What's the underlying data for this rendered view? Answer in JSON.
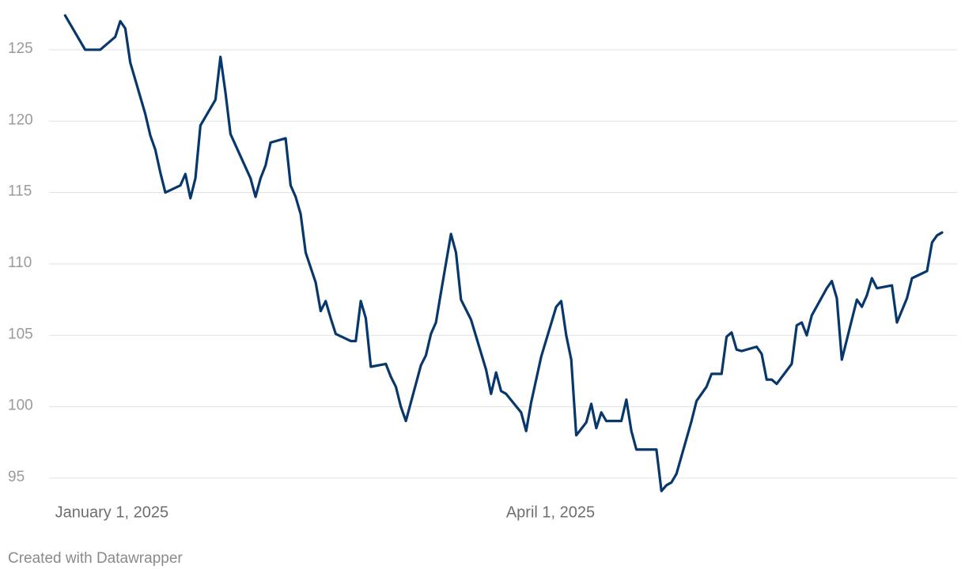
{
  "chart_data": {
    "type": "line",
    "x": [
      "2025-01-03",
      "2025-01-07",
      "2025-01-10",
      "2025-01-13",
      "2025-01-14",
      "2025-01-15",
      "2025-01-16",
      "2025-01-19",
      "2025-01-20",
      "2025-01-21",
      "2025-01-22",
      "2025-01-23",
      "2025-01-26",
      "2025-01-27",
      "2025-01-28",
      "2025-01-29",
      "2025-01-30",
      "2025-02-02",
      "2025-02-03",
      "2025-02-04",
      "2025-02-05",
      "2025-02-09",
      "2025-02-10",
      "2025-02-11",
      "2025-02-12",
      "2025-02-13",
      "2025-02-16",
      "2025-02-17",
      "2025-02-18",
      "2025-02-19",
      "2025-02-20",
      "2025-02-22",
      "2025-02-23",
      "2025-02-24",
      "2025-02-25",
      "2025-02-26",
      "2025-03-01",
      "2025-03-02",
      "2025-03-03",
      "2025-03-04",
      "2025-03-05",
      "2025-03-08",
      "2025-03-09",
      "2025-03-10",
      "2025-03-11",
      "2025-03-12",
      "2025-03-15",
      "2025-03-16",
      "2025-03-17",
      "2025-03-18",
      "2025-03-19",
      "2025-03-21",
      "2025-03-22",
      "2025-03-23",
      "2025-03-25",
      "2025-03-28",
      "2025-03-29",
      "2025-03-30",
      "2025-03-31",
      "2025-04-01",
      "2025-04-04",
      "2025-04-05",
      "2025-04-06",
      "2025-04-08",
      "2025-04-11",
      "2025-04-12",
      "2025-04-13",
      "2025-04-14",
      "2025-04-15",
      "2025-04-17",
      "2025-04-18",
      "2025-04-19",
      "2025-04-20",
      "2025-04-21",
      "2025-04-24",
      "2025-04-25",
      "2025-04-26",
      "2025-04-27",
      "2025-05-01",
      "2025-05-02",
      "2025-05-03",
      "2025-05-04",
      "2025-05-05",
      "2025-05-08",
      "2025-05-09",
      "2025-05-11",
      "2025-05-12",
      "2025-05-14",
      "2025-05-15",
      "2025-05-16",
      "2025-05-17",
      "2025-05-18",
      "2025-05-21",
      "2025-05-22",
      "2025-05-23",
      "2025-05-24",
      "2025-05-25",
      "2025-05-28",
      "2025-05-29",
      "2025-05-30",
      "2025-05-31",
      "2025-06-01",
      "2025-06-04",
      "2025-06-05",
      "2025-06-06",
      "2025-06-07",
      "2025-06-10",
      "2025-06-11",
      "2025-06-12",
      "2025-06-13",
      "2025-06-14",
      "2025-06-17",
      "2025-06-18",
      "2025-06-20",
      "2025-06-21",
      "2025-06-24",
      "2025-06-25",
      "2025-06-26",
      "2025-06-27"
    ],
    "values": [
      127.4,
      125.0,
      125.0,
      125.9,
      127.0,
      126.5,
      124.1,
      120.5,
      119.0,
      118.0,
      116.4,
      115.0,
      115.5,
      116.3,
      114.6,
      116.0,
      119.7,
      121.5,
      124.5,
      122.0,
      119.1,
      116.0,
      114.7,
      116.0,
      116.9,
      118.5,
      118.8,
      115.5,
      114.7,
      113.5,
      110.8,
      108.7,
      106.7,
      107.4,
      106.2,
      105.1,
      104.6,
      104.6,
      107.4,
      106.2,
      102.8,
      103.0,
      102.1,
      101.4,
      100.0,
      99.0,
      102.9,
      103.6,
      105.1,
      105.9,
      108.0,
      112.1,
      110.8,
      107.5,
      106.1,
      102.6,
      100.9,
      102.4,
      101.1,
      100.9,
      99.6,
      98.3,
      100.3,
      103.5,
      107.0,
      107.4,
      105.0,
      103.3,
      98.0,
      98.9,
      100.2,
      98.5,
      99.6,
      99.0,
      99.0,
      100.5,
      98.3,
      97.0,
      97.0,
      94.1,
      94.5,
      94.7,
      95.3,
      99.0,
      100.4,
      101.4,
      102.3,
      102.3,
      104.9,
      105.2,
      104.0,
      103.9,
      104.2,
      103.7,
      101.9,
      101.9,
      101.6,
      103.0,
      105.7,
      105.9,
      105.0,
      106.4,
      108.3,
      108.8,
      107.6,
      103.3,
      107.5,
      107.0,
      107.8,
      109.0,
      108.3,
      108.5,
      105.9,
      107.6,
      109.0,
      109.5,
      111.5,
      112.0,
      112.2
    ],
    "color": "#08386b",
    "xlim": [
      "2024-12-30",
      "2025-06-30"
    ],
    "xticks": [
      {
        "value": "2025-01-01",
        "label": "January 1, 2025"
      },
      {
        "value": "2025-04-01",
        "label": "April 1, 2025"
      }
    ],
    "ylim": [
      93.5,
      127.5
    ],
    "yticks": [
      95,
      100,
      105,
      110,
      115,
      120,
      125
    ],
    "grid": true,
    "credit": "Created with Datawrapper"
  }
}
